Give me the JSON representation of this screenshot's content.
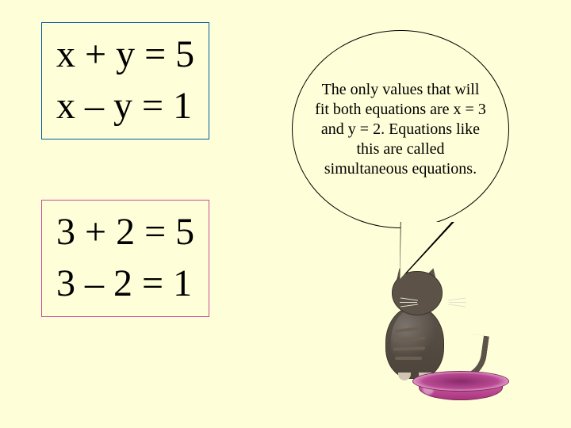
{
  "colors": {
    "background": "#feffd8",
    "box1_border": "#005a9e",
    "box2_border": "#c94b9b",
    "text": "#000000",
    "cat_body": "#5a5148",
    "cat_light": "#cfc7b3",
    "bowl_primary": "#b84a92"
  },
  "typography": {
    "equation_fontsize_pt": 36,
    "bubble_fontsize_pt": 15,
    "font_family": "Times New Roman"
  },
  "equations_box1": {
    "line1": "x + y = 5",
    "line2": "x – y = 1"
  },
  "equations_box2": {
    "line1": "3 + 2 = 5",
    "line2": "3 – 2 = 1"
  },
  "bubble": {
    "text": "The only values that will fit both equations are x = 3 and y = 2. Equations like this are called simultaneous equations."
  }
}
